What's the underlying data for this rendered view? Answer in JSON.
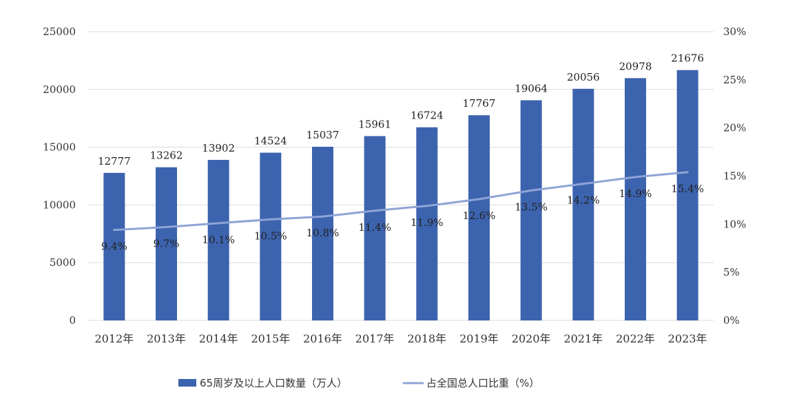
{
  "chart_data": {
    "type": "bar",
    "categories": [
      "2012年",
      "2013年",
      "2014年",
      "2015年",
      "2016年",
      "2017年",
      "2018年",
      "2019年",
      "2020年",
      "2021年",
      "2022年",
      "2023年"
    ],
    "series": [
      {
        "name": "65周岁及以上人口数量（万人）",
        "type": "bar",
        "axis": "left",
        "color": "#3c63ae",
        "values": [
          12777,
          13262,
          13902,
          14524,
          15037,
          15961,
          16724,
          17767,
          19064,
          20056,
          20978,
          21676
        ]
      },
      {
        "name": "占全国总人口比重（%）",
        "type": "line",
        "axis": "right",
        "color": "#8ea4d6",
        "values": [
          9.4,
          9.7,
          10.1,
          10.5,
          10.8,
          11.4,
          11.9,
          12.6,
          13.5,
          14.2,
          14.9,
          15.4
        ],
        "labels": [
          "9.4%",
          "9.7%",
          "10.1%",
          "10.5%",
          "10.8%",
          "11.4%",
          "11.9%",
          "12.6%",
          "13.5%",
          "14.2%",
          "14.9%",
          "15.4%"
        ]
      }
    ],
    "y_left": {
      "ylim": [
        0,
        25000
      ],
      "ticks": [
        "0",
        "5000",
        "10000",
        "15000",
        "20000",
        "25000"
      ]
    },
    "y_right": {
      "ylim": [
        0,
        30
      ],
      "ticks": [
        "0%",
        "5%",
        "10%",
        "15%",
        "20%",
        "25%",
        "30%"
      ]
    },
    "grid": true,
    "legend_position": "bottom"
  }
}
